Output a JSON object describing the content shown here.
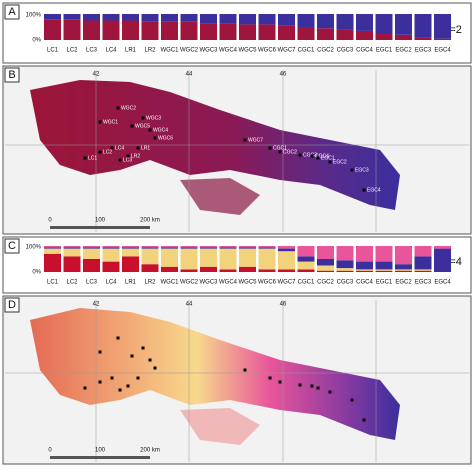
{
  "populations": [
    "LC1",
    "LC2",
    "LC3",
    "LC4",
    "LR1",
    "LR2",
    "WGC1",
    "WGC2",
    "WGC3",
    "WGC4",
    "WGC5",
    "WGC6",
    "WGC7",
    "CGC1",
    "CGC2",
    "CGC3",
    "CGC4",
    "EGC1",
    "EGC2",
    "EGC3",
    "EGC4"
  ],
  "panel_a": {
    "label": "A",
    "axis_top": "100%",
    "axis_bottom": "0%",
    "k_label": "K=2",
    "cluster_colors": [
      "#a0153e",
      "#3b2f9e"
    ],
    "shares": [
      [
        0.8,
        0.2
      ],
      [
        0.8,
        0.2
      ],
      [
        0.75,
        0.25
      ],
      [
        0.75,
        0.25
      ],
      [
        0.75,
        0.25
      ],
      [
        0.7,
        0.3
      ],
      [
        0.7,
        0.3
      ],
      [
        0.7,
        0.3
      ],
      [
        0.65,
        0.35
      ],
      [
        0.65,
        0.35
      ],
      [
        0.6,
        0.4
      ],
      [
        0.6,
        0.4
      ],
      [
        0.55,
        0.45
      ],
      [
        0.5,
        0.5
      ],
      [
        0.45,
        0.55
      ],
      [
        0.4,
        0.6
      ],
      [
        0.35,
        0.65
      ],
      [
        0.25,
        0.75
      ],
      [
        0.2,
        0.8
      ],
      [
        0.1,
        0.9
      ],
      [
        0.05,
        0.95
      ]
    ]
  },
  "panel_b": {
    "label": "B",
    "lon_labels": [
      "42",
      "44",
      "46"
    ],
    "scale_labels": [
      "0",
      "100",
      "200 km"
    ],
    "site_labels": [
      "WGC2",
      "WGC3",
      "WGC4",
      "WGC5",
      "WGC1",
      "WGC6",
      "LC1",
      "LC2",
      "LC3",
      "LC4",
      "LR1",
      "LR2",
      "WGC7",
      "CGC1",
      "CGC2",
      "CGC3",
      "CGC4",
      "EGC1",
      "EGC2",
      "EGC3",
      "EGC4"
    ]
  },
  "panel_c": {
    "label": "C",
    "axis_top": "100%",
    "axis_bottom": "0%",
    "k_label": "K=4",
    "cluster_colors": [
      "#c8102e",
      "#f2d27a",
      "#3b2f9e",
      "#e8559a"
    ],
    "shares": [
      [
        0.7,
        0.2,
        0.05,
        0.05
      ],
      [
        0.6,
        0.3,
        0.05,
        0.05
      ],
      [
        0.5,
        0.4,
        0.05,
        0.05
      ],
      [
        0.4,
        0.5,
        0.05,
        0.05
      ],
      [
        0.6,
        0.3,
        0.05,
        0.05
      ],
      [
        0.3,
        0.6,
        0.05,
        0.05
      ],
      [
        0.2,
        0.7,
        0.05,
        0.05
      ],
      [
        0.1,
        0.8,
        0.05,
        0.05
      ],
      [
        0.2,
        0.7,
        0.05,
        0.05
      ],
      [
        0.1,
        0.8,
        0.05,
        0.05
      ],
      [
        0.2,
        0.7,
        0.05,
        0.05
      ],
      [
        0.1,
        0.8,
        0.05,
        0.05
      ],
      [
        0.1,
        0.7,
        0.1,
        0.1
      ],
      [
        0.1,
        0.3,
        0.2,
        0.4
      ],
      [
        0.05,
        0.2,
        0.25,
        0.5
      ],
      [
        0.05,
        0.1,
        0.3,
        0.55
      ],
      [
        0.05,
        0.05,
        0.3,
        0.6
      ],
      [
        0.05,
        0.05,
        0.3,
        0.6
      ],
      [
        0.05,
        0.05,
        0.2,
        0.7
      ],
      [
        0.05,
        0.05,
        0.5,
        0.4
      ],
      [
        0,
        0,
        0.9,
        0.1
      ]
    ]
  },
  "panel_d": {
    "label": "D",
    "lon_labels": [
      "42",
      "44",
      "46"
    ],
    "scale_labels": [
      "0",
      "100",
      "200 km"
    ]
  }
}
